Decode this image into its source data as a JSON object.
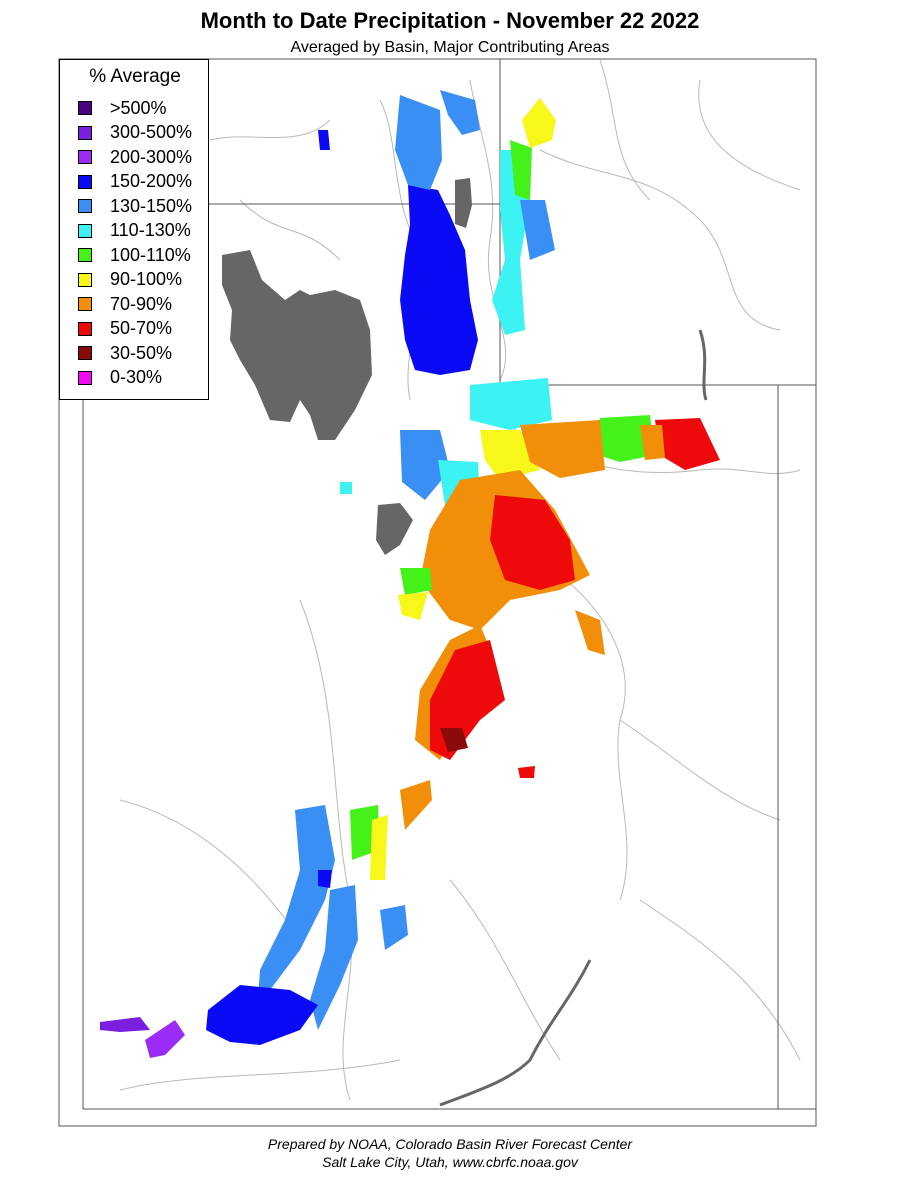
{
  "header": {
    "title": "Month to Date Precipitation - November 22 2022",
    "subtitle": "Averaged by Basin, Major Contributing Areas"
  },
  "legend": {
    "title": "% Average",
    "items": [
      {
        "label": ">500%",
        "color": "#4b0082"
      },
      {
        "label": "300-500%",
        "color": "#7a1fe0"
      },
      {
        "label": "200-300%",
        "color": "#9a2cf6"
      },
      {
        "label": "150-200%",
        "color": "#0a0af5"
      },
      {
        "label": "130-150%",
        "color": "#3a8ff5"
      },
      {
        "label": "110-130%",
        "color": "#3cf2f2"
      },
      {
        "label": "100-110%",
        "color": "#44f21a"
      },
      {
        "label": "90-100%",
        "color": "#f7f71a"
      },
      {
        "label": "70-90%",
        "color": "#f28f0a"
      },
      {
        "label": "50-70%",
        "color": "#ee0a0a"
      },
      {
        "label": "30-50%",
        "color": "#8b0a0a"
      },
      {
        "label": "0-30%",
        "color": "#f20af2"
      }
    ]
  },
  "map_colors": {
    "lake": "#666666",
    "state_border": "#555555",
    "rivers": "#b8b8b8"
  },
  "footer": {
    "line1": "Prepared by NOAA, Colorado Basin River Forecast Center",
    "line2": "Salt Lake City, Utah, www.cbrfc.noaa.gov"
  }
}
